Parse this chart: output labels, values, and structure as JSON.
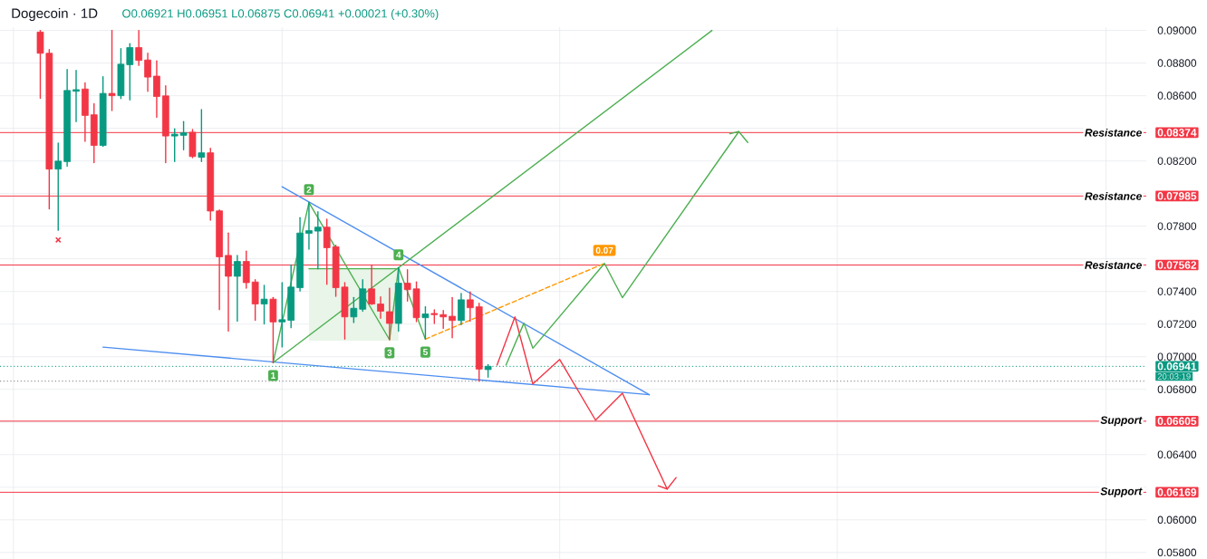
{
  "chart_data": {
    "type": "candlestick",
    "title": "Dogecoin · 1D",
    "subtitle": "O0.06921 H0.06951 L0.06875 C0.06941 +0.00021 (+0.30%)",
    "categories": [
      null,
      null,
      null,
      null,
      null,
      null,
      null,
      null,
      null,
      null,
      null,
      null,
      null,
      null,
      null,
      null,
      null,
      null,
      null,
      null,
      null,
      null,
      null,
      null,
      null,
      null,
      null,
      null,
      null,
      null,
      null,
      null,
      null,
      null,
      null,
      null,
      null,
      null,
      null,
      null,
      null,
      null,
      null,
      null,
      null,
      null,
      null,
      null,
      null,
      null,
      null,
      null,
      null,
      null,
      null,
      null,
      null,
      null,
      null,
      null,
      null,
      null,
      null,
      null,
      null,
      null,
      null,
      null,
      null,
      null,
      null,
      null,
      null,
      null,
      null,
      null,
      null,
      null,
      null,
      null,
      null,
      null,
      null,
      null,
      null,
      null,
      null,
      null,
      null,
      null,
      null,
      null,
      null,
      null,
      null,
      null,
      null,
      null,
      null,
      null,
      null,
      null,
      null,
      null,
      null,
      null,
      null,
      null,
      null,
      null,
      null,
      null,
      null,
      null,
      null,
      null,
      null,
      null,
      null,
      null,
      null,
      null,
      null,
      null,
      null,
      null,
      null,
      null
    ],
    "ohlc": [
      null,
      null,
      null,
      null,
      [
        0.0899,
        0.09,
        0.08584,
        0.0886
      ],
      [
        0.0886,
        0.08883,
        0.07906,
        0.0815
      ],
      [
        0.0815,
        0.0831,
        0.07775,
        0.08199
      ],
      [
        0.08196,
        0.0876,
        0.08168,
        0.08632
      ],
      [
        0.08627,
        0.08755,
        0.08441,
        0.08637
      ],
      [
        0.08641,
        0.08678,
        0.0832,
        0.08479
      ],
      [
        0.08483,
        0.08551,
        0.0819,
        0.08295
      ],
      [
        0.08295,
        0.08716,
        0.0829,
        0.08614
      ],
      [
        0.08614,
        0.09,
        0.08509,
        0.086
      ],
      [
        0.086,
        0.08888,
        0.08583,
        0.08793
      ],
      [
        0.0879,
        0.08919,
        0.08574,
        0.08895
      ],
      [
        0.08895,
        0.09,
        0.08786,
        0.08816
      ],
      [
        0.08819,
        0.0886,
        0.08627,
        0.08714
      ],
      [
        0.0872,
        0.08813,
        0.08467,
        0.08595
      ],
      [
        0.08599,
        0.0866,
        0.0819,
        0.08353
      ],
      [
        0.08353,
        0.08397,
        0.08196,
        0.08364
      ],
      [
        0.08357,
        0.08441,
        0.08269,
        0.08373
      ],
      [
        0.08376,
        0.08392,
        0.0822,
        0.08227
      ],
      [
        0.08222,
        0.08515,
        0.08196,
        0.0825
      ],
      [
        0.0825,
        0.08278,
        0.07837,
        0.07893
      ],
      [
        0.07894,
        0.079,
        0.07288,
        0.07612
      ],
      [
        0.07621,
        0.07758,
        0.07157,
        0.07493
      ],
      [
        0.07493,
        0.07621,
        0.07218,
        0.07584
      ],
      [
        0.07584,
        0.07647,
        0.0742,
        0.07454
      ],
      [
        0.07458,
        0.07472,
        0.07223,
        0.07323
      ],
      [
        0.07323,
        0.07437,
        0.07201,
        0.07353
      ],
      [
        0.07353,
        0.07363,
        0.06964,
        0.07213
      ],
      [
        0.07213,
        0.07454,
        0.0706,
        0.07227
      ],
      [
        0.07223,
        0.07563,
        0.07178,
        0.07427
      ],
      [
        0.07423,
        0.07852,
        0.07402,
        0.07758
      ],
      [
        0.07756,
        0.07945,
        0.07659,
        0.07773
      ],
      [
        0.0777,
        0.07889,
        0.07539,
        0.07794
      ],
      [
        0.07794,
        0.07843,
        0.07444,
        0.07668
      ],
      [
        0.07674,
        0.07683,
        0.0737,
        0.07423
      ],
      [
        0.07427,
        0.07454,
        0.07108,
        0.07244
      ],
      [
        0.07244,
        0.07363,
        0.07209,
        0.07297
      ],
      [
        0.07291,
        0.07472,
        0.07279,
        0.07416
      ],
      [
        0.07416,
        0.07563,
        0.0732,
        0.07323
      ],
      [
        0.07323,
        0.07367,
        0.07236,
        0.07279
      ],
      [
        0.07276,
        0.0742,
        0.07104,
        0.07204
      ],
      [
        0.07204,
        0.07546,
        0.07157,
        0.07451
      ],
      [
        0.07451,
        0.07533,
        0.07341,
        0.07411
      ],
      [
        0.07416,
        0.07458,
        0.07215,
        0.07239
      ],
      [
        0.07239,
        0.07306,
        0.07108,
        0.07262
      ],
      [
        0.07265,
        0.07288,
        0.07204,
        0.07258
      ],
      [
        0.07258,
        0.07283,
        0.07174,
        0.07244
      ],
      [
        0.07248,
        0.07363,
        0.07116,
        0.07222
      ],
      [
        0.07222,
        0.07388,
        0.07197,
        0.07349
      ],
      [
        0.07349,
        0.07397,
        0.07218,
        0.073
      ],
      [
        0.07306,
        0.07328,
        0.0685,
        0.06924
      ],
      [
        0.06921,
        0.06951,
        0.06875,
        0.06941
      ],
      null,
      null,
      null,
      null,
      null,
      null,
      null,
      null,
      null,
      null,
      null,
      null,
      null,
      null,
      null,
      null,
      null,
      null,
      null,
      null,
      null,
      null,
      null,
      null,
      null,
      null,
      null,
      null,
      null,
      null,
      null,
      null,
      null,
      null,
      null,
      null,
      null,
      null,
      null,
      null,
      null,
      null,
      null,
      null,
      null,
      null,
      null,
      null,
      null,
      null,
      null,
      null,
      null,
      null,
      null,
      null,
      null,
      null,
      null,
      null,
      null,
      null,
      null,
      null,
      null,
      null,
      null,
      null,
      null,
      null,
      null,
      null,
      null
    ],
    "colors": [
      null,
      null,
      null,
      null,
      "#f23645",
      "#f23645",
      "#089981",
      "#089981",
      "#089981",
      "#f23645",
      "#f23645",
      "#089981",
      "#f23645",
      "#089981",
      "#089981",
      "#f23645",
      "#f23645",
      "#f23645",
      "#f23645",
      "#089981",
      "#089981",
      "#f23645",
      "#089981",
      "#f23645",
      "#f23645",
      "#f23645",
      "#089981",
      "#f23645",
      "#f23645",
      "#089981",
      "#f23645",
      "#089981",
      "#089981",
      "#089981",
      "#089981",
      "#089981",
      "#f23645",
      "#f23645",
      "#f23645",
      "#089981",
      "#089981",
      "#f23645",
      "#f23645",
      "#f23645",
      "#089981",
      "#f23645",
      "#f23645",
      "#089981",
      "#f23645",
      "#f23645",
      "#f23645",
      "#089981",
      "#f23645",
      "#f23645",
      "#089981",
      null,
      null,
      null,
      null,
      null,
      null,
      null,
      null,
      null,
      null,
      null,
      null,
      null,
      null,
      null,
      null,
      null,
      null,
      null,
      null,
      null,
      null,
      null,
      null,
      null,
      null,
      null,
      null,
      null,
      null,
      null,
      null,
      null,
      null,
      null,
      null,
      null,
      null,
      null,
      null,
      null,
      null,
      null,
      null,
      null,
      null,
      null,
      null,
      null,
      null,
      null,
      null,
      null,
      null,
      null,
      null,
      null,
      null,
      null,
      null,
      null,
      null,
      null,
      null,
      null,
      null,
      null,
      null,
      null,
      null,
      null,
      null,
      null
    ],
    "ylim": [
      0.0576,
      0.0902
    ],
    "yticks": [
      {
        "value": 0.058,
        "label": "0.05800"
      },
      {
        "value": 0.06,
        "label": "0.06000"
      },
      {
        "value": 0.06169,
        "label": "0.06169"
      },
      {
        "value": 0.062,
        "label": null
      },
      {
        "value": 0.064,
        "label": "0.06400"
      },
      {
        "value": 0.06605,
        "label": "0.06605"
      },
      {
        "value": 0.066,
        "label": null
      },
      {
        "value": 0.068,
        "label": "0.06800"
      },
      {
        "value": 0.06941,
        "label": "0.06941"
      },
      {
        "value": 0.07,
        "label": "0.07000"
      },
      {
        "value": 0.072,
        "label": "0.07200"
      },
      {
        "value": 0.074,
        "label": "0.07400"
      },
      {
        "value": 0.07562,
        "label": "0.07562"
      },
      {
        "value": 0.076,
        "label": null
      },
      {
        "value": 0.078,
        "label": "0.07800"
      },
      {
        "value": 0.07985,
        "label": "0.07985"
      },
      {
        "value": 0.08,
        "label": null
      },
      {
        "value": 0.082,
        "label": "0.08200"
      },
      {
        "value": 0.08374,
        "label": "0.08374"
      },
      {
        "value": 0.084,
        "label": null
      },
      {
        "value": 0.086,
        "label": "0.08600"
      },
      {
        "value": 0.088,
        "label": "0.08800"
      },
      {
        "value": 0.09,
        "label": "0.09000"
      }
    ],
    "grid": true,
    "tick_labels": "y",
    "ref_lines": [
      {
        "axis": "y",
        "value": 0.08374,
        "label": "Resistance",
        "color": "#f23645",
        "line_style": "solid"
      },
      {
        "axis": "y",
        "value": 0.07985,
        "label": "Resistance",
        "color": "#f23645",
        "line_style": "solid"
      },
      {
        "axis": "y",
        "value": 0.07562,
        "label": "Resistance",
        "color": "#f23645",
        "line_style": "solid"
      },
      {
        "axis": "y",
        "value": 0.06605,
        "label": "Support",
        "color": "#f23645",
        "line_style": "solid"
      },
      {
        "axis": "y",
        "value": 0.06169,
        "label": "Support",
        "color": "#f23645",
        "line_style": "solid"
      },
      {
        "axis": "y",
        "value": 0.06941,
        "color": "#089981",
        "line_style": "dotted"
      },
      {
        "axis": "y",
        "value": 0.0685,
        "color": "#787b86",
        "line_style": "dotted"
      }
    ],
    "series": [
      {
        "type": "line",
        "color": "#4caf50",
        "values": [
          null,
          null,
          null,
          null,
          null,
          null,
          null,
          null,
          null,
          null,
          null,
          null,
          null,
          null,
          null,
          null,
          null,
          null,
          null,
          null,
          null,
          null,
          null,
          null,
          null,
          null,
          null,
          null,
          null,
          null,
          null,
          null,
          null,
          null,
          0.07539,
          null,
          null,
          null,
          null,
          null,
          null,
          null,
          null,
          null,
          0.07539,
          null,
          null,
          null,
          null,
          null,
          null,
          null,
          null,
          null,
          null,
          null,
          null,
          null,
          null,
          null,
          null,
          null,
          null,
          null,
          null,
          null,
          null,
          null,
          null,
          null,
          null,
          null,
          null,
          null,
          null,
          null,
          null,
          null,
          null,
          null,
          null,
          null,
          null,
          null,
          null,
          null,
          null,
          null,
          null,
          null,
          null,
          null,
          null,
          null,
          null,
          null,
          null,
          null,
          null,
          null,
          null,
          null,
          null,
          null,
          null,
          null,
          null,
          null,
          null,
          null,
          null,
          null,
          null,
          null,
          null,
          null,
          null,
          null,
          null,
          null,
          null,
          null,
          null,
          null,
          null,
          null,
          null,
          null
        ],
        "lower": [
          null,
          null,
          null,
          null,
          null,
          null,
          null,
          null,
          null,
          null,
          null,
          null,
          null,
          null,
          null,
          null,
          null,
          null,
          null,
          null,
          null,
          null,
          null,
          null,
          null,
          null,
          null,
          null,
          null,
          null,
          null,
          null,
          null,
          null,
          0.07099,
          null,
          null,
          null,
          null,
          null,
          null,
          null,
          null,
          null,
          0.07099,
          null,
          null,
          null,
          null,
          null,
          null,
          null,
          null,
          null,
          null,
          null,
          null,
          null,
          null,
          null,
          null,
          null,
          null,
          null,
          null,
          null,
          null,
          null,
          null,
          null,
          null,
          null,
          null,
          null,
          null,
          null,
          null,
          null,
          null,
          null,
          null,
          null,
          null,
          null,
          null,
          null,
          null,
          null,
          null,
          null,
          null,
          null,
          null,
          null,
          null,
          null,
          null,
          null,
          null,
          null,
          null,
          null,
          null,
          null,
          null,
          null,
          null,
          null,
          null,
          null,
          null,
          null,
          null,
          null,
          null,
          null,
          null,
          null,
          null,
          null,
          null,
          null,
          null,
          null,
          null,
          null,
          null,
          null
        ],
        "upper": [
          null,
          null,
          null,
          null,
          null,
          null,
          null,
          null,
          null,
          null,
          null,
          null,
          null,
          null,
          null,
          null,
          null,
          null,
          null,
          null,
          null,
          null,
          null,
          null,
          null,
          null,
          null,
          null,
          null,
          null,
          null,
          null,
          null,
          null,
          0.07539,
          null,
          null,
          null,
          null,
          null,
          null,
          null,
          null,
          null,
          0.07539,
          null,
          null,
          null,
          null,
          null,
          null,
          null,
          null,
          null,
          null,
          null,
          null,
          null,
          null,
          null,
          null,
          null,
          null,
          null,
          null,
          null,
          null,
          null,
          null,
          null,
          null,
          null,
          null,
          null,
          null,
          null,
          null,
          null,
          null,
          null,
          null,
          null,
          null,
          null,
          null,
          null,
          null,
          null,
          null,
          null,
          null,
          null,
          null,
          null,
          null,
          null,
          null,
          null,
          null,
          null,
          null,
          null,
          null,
          null,
          null,
          null,
          null,
          null,
          null,
          null,
          null,
          null,
          null,
          null,
          null,
          null,
          null,
          null,
          null,
          null,
          null,
          null,
          null,
          null,
          null,
          null,
          null,
          null
        ]
      },
      {
        "type": "line",
        "color": "#4d8ef0",
        "values": [
          null,
          null,
          null,
          null,
          null,
          null,
          null,
          null,
          null,
          null,
          null,
          null,
          null,
          null,
          null,
          null,
          null,
          null,
          null,
          null,
          null,
          null,
          null,
          null,
          null,
          null,
          null,
          null,
          null,
          null,
          null,
          0.08042,
          null,
          null,
          null,
          null,
          null,
          null,
          null,
          null,
          null,
          null,
          null,
          null,
          null,
          null,
          null,
          null,
          null,
          null,
          null,
          null,
          null,
          null,
          null,
          null,
          null,
          null,
          null,
          null,
          null,
          null,
          null,
          null,
          null,
          null,
          null,
          null,
          null,
          null,
          null,
          null,
          0.06767,
          null,
          null,
          null,
          null,
          null,
          null,
          null,
          null,
          null,
          null,
          null,
          null,
          null,
          null,
          null,
          null,
          null,
          null,
          null,
          null,
          null,
          null,
          null,
          null,
          null,
          null,
          null,
          null,
          null,
          null,
          null,
          null,
          null,
          null,
          null,
          null,
          null,
          null,
          null,
          null,
          null,
          null,
          null,
          null,
          null,
          null,
          null,
          null,
          null,
          null,
          null,
          null,
          null,
          null,
          null
        ]
      },
      {
        "type": "line",
        "color": "#4d8ef0",
        "values": [
          null,
          null,
          null,
          null,
          null,
          null,
          null,
          null,
          null,
          null,
          null,
          0.07059,
          null,
          null,
          null,
          null,
          null,
          null,
          null,
          null,
          null,
          null,
          null,
          null,
          null,
          null,
          null,
          null,
          null,
          null,
          null,
          null,
          null,
          null,
          null,
          null,
          null,
          null,
          null,
          null,
          null,
          null,
          null,
          null,
          null,
          null,
          null,
          null,
          null,
          null,
          null,
          null,
          null,
          null,
          null,
          null,
          null,
          null,
          null,
          null,
          null,
          null,
          null,
          null,
          null,
          null,
          null,
          null,
          null,
          null,
          null,
          null,
          0.06767,
          null,
          null,
          null,
          null,
          null,
          null,
          null,
          null,
          null,
          null,
          null,
          null,
          null,
          null,
          null,
          null,
          null,
          null,
          null,
          null,
          null,
          null,
          null,
          null,
          null,
          null,
          null,
          null,
          null,
          null,
          null,
          null,
          null,
          null,
          null,
          null,
          null,
          null,
          null,
          null,
          null,
          null,
          null,
          null,
          null,
          null,
          null,
          null,
          null,
          null,
          null,
          null,
          null,
          null,
          null
        ]
      },
      {
        "type": "line",
        "color": "#4caf50",
        "values": [
          null,
          null,
          null,
          null,
          null,
          null,
          null,
          null,
          null,
          null,
          null,
          null,
          null,
          null,
          null,
          null,
          null,
          null,
          null,
          null,
          null,
          null,
          null,
          null,
          null,
          null,
          null,
          null,
          null,
          null,
          0.06964,
          null,
          null,
          null,
          0.07945,
          null,
          null,
          null,
          null,
          null,
          null,
          null,
          null,
          0.07104,
          0.07546,
          null,
          null,
          0.07108,
          null,
          null,
          null,
          null,
          null,
          null,
          null,
          null,
          null,
          null,
          null,
          null,
          null,
          null,
          null,
          null,
          null,
          null,
          null,
          null,
          null,
          null,
          null,
          null,
          null,
          null,
          null,
          null,
          null,
          null,
          null,
          null,
          null,
          null,
          null,
          null,
          null,
          null,
          null,
          null,
          null,
          null,
          null,
          null,
          null,
          null,
          null,
          null,
          null,
          null,
          null,
          null,
          null,
          null,
          null,
          null,
          null,
          null,
          null,
          null,
          null,
          null,
          null,
          null,
          null,
          null,
          null,
          null,
          null,
          null,
          null,
          null,
          null,
          null,
          null,
          null,
          null,
          null,
          null,
          null
        ]
      },
      {
        "type": "line",
        "color": "#4caf50",
        "values": [
          null,
          null,
          null,
          null,
          null,
          null,
          null,
          null,
          null,
          null,
          null,
          null,
          null,
          null,
          null,
          null,
          null,
          null,
          null,
          null,
          null,
          null,
          null,
          null,
          null,
          null,
          null,
          null,
          null,
          null,
          0.06964,
          null,
          null,
          null,
          null,
          null,
          null,
          null,
          null,
          null,
          null,
          null,
          null,
          null,
          null,
          null,
          null,
          null,
          null,
          null,
          null,
          null,
          null,
          null,
          null,
          null,
          null,
          null,
          null,
          null,
          null,
          null,
          null,
          null,
          null,
          null,
          null,
          null,
          null,
          null,
          null,
          null,
          null,
          null,
          null,
          null,
          null,
          null,
          null,
          0.09,
          null,
          null,
          null,
          null,
          null,
          null,
          null,
          null,
          null,
          null,
          null,
          null,
          null,
          null,
          null,
          null,
          null,
          null,
          null,
          null,
          null,
          null,
          null,
          null,
          null,
          null,
          null,
          null,
          null,
          null,
          null,
          null,
          null,
          null,
          null,
          null,
          null,
          null,
          null,
          null,
          null,
          null,
          null,
          null,
          null,
          null,
          null,
          null
        ]
      },
      {
        "type": "line",
        "color": "#ff9800",
        "line_style": "dashed",
        "values": [
          null,
          null,
          null,
          null,
          null,
          null,
          null,
          null,
          null,
          null,
          null,
          null,
          null,
          null,
          null,
          null,
          null,
          null,
          null,
          null,
          null,
          null,
          null,
          null,
          null,
          null,
          null,
          null,
          null,
          null,
          null,
          null,
          null,
          null,
          null,
          null,
          null,
          null,
          null,
          null,
          null,
          null,
          null,
          null,
          null,
          null,
          null,
          0.07108,
          null,
          null,
          null,
          null,
          null,
          null,
          null,
          null,
          null,
          null,
          null,
          null,
          null,
          null,
          null,
          null,
          null,
          null,
          null,
          0.07572,
          null,
          null,
          null,
          null,
          null,
          null,
          null,
          null,
          null,
          null,
          null,
          null,
          null,
          null,
          null,
          null,
          null,
          null,
          null,
          null,
          null,
          null,
          null,
          null,
          null,
          null,
          null,
          null,
          null,
          null,
          null,
          null,
          null,
          null,
          null,
          null,
          null,
          null,
          null,
          null,
          null,
          null,
          null,
          null,
          null,
          null,
          null,
          null,
          null,
          null,
          null,
          null,
          null,
          null,
          null,
          null,
          null,
          null,
          null,
          null
        ]
      },
      {
        "type": "line",
        "color": "#f23645",
        "values": [
          null,
          null,
          null,
          null,
          null,
          null,
          null,
          null,
          null,
          null,
          null,
          null,
          null,
          null,
          null,
          null,
          null,
          null,
          null,
          null,
          null,
          null,
          null,
          null,
          null,
          null,
          null,
          null,
          null,
          null,
          null,
          null,
          null,
          null,
          null,
          null,
          null,
          null,
          null,
          null,
          null,
          null,
          null,
          null,
          null,
          null,
          null,
          null,
          null,
          null,
          null,
          null,
          null,
          null,
          null,
          0.06949,
          null,
          0.07244,
          null,
          0.06833,
          null,
          null,
          0.06983,
          null,
          null,
          null,
          0.06611,
          null,
          null,
          0.06776,
          null,
          null,
          null,
          null,
          0.06189,
          null,
          null,
          null,
          null,
          null,
          null,
          null,
          null,
          null,
          null,
          null,
          null,
          null,
          null,
          null,
          null,
          null,
          null,
          null,
          null,
          null,
          null,
          null,
          null,
          null,
          null,
          null,
          null,
          null,
          null,
          null,
          null,
          null,
          null,
          null,
          null,
          null,
          null,
          null,
          null,
          null,
          null,
          null,
          null,
          null,
          null,
          null,
          null,
          null,
          null,
          null,
          null,
          null
        ]
      },
      {
        "type": "line",
        "color": "#f23645",
        "values": [
          null,
          null,
          null,
          null,
          null,
          null,
          null,
          null,
          null,
          null,
          null,
          null,
          null,
          null,
          null,
          null,
          null,
          null,
          null,
          null,
          null,
          null,
          null,
          null,
          null,
          null,
          null,
          null,
          null,
          null,
          null,
          null,
          null,
          null,
          null,
          null,
          null,
          null,
          null,
          null,
          null,
          null,
          null,
          null,
          null,
          null,
          null,
          null,
          null,
          null,
          null,
          null,
          null,
          null,
          null,
          null,
          null,
          null,
          null,
          null,
          null,
          null,
          null,
          null,
          null,
          null,
          null,
          null,
          null,
          null,
          null,
          null,
          null,
          0.06209,
          0.06189,
          0.06259,
          null,
          null,
          null,
          null,
          null,
          null,
          null,
          null,
          null,
          null,
          null,
          null,
          null,
          null,
          null,
          null,
          null,
          null,
          null,
          null,
          null,
          null,
          null,
          null,
          null,
          null,
          null,
          null,
          null,
          null,
          null,
          null,
          null,
          null,
          null,
          null,
          null,
          null,
          null,
          null,
          null,
          null,
          null,
          null,
          null,
          null,
          null,
          null,
          null,
          null,
          null,
          null
        ]
      },
      {
        "type": "line",
        "color": "#4caf50",
        "values": [
          null,
          null,
          null,
          null,
          null,
          null,
          null,
          null,
          null,
          null,
          null,
          null,
          null,
          null,
          null,
          null,
          null,
          null,
          null,
          null,
          null,
          null,
          null,
          null,
          null,
          null,
          null,
          null,
          null,
          null,
          null,
          null,
          null,
          null,
          null,
          null,
          null,
          null,
          null,
          null,
          null,
          null,
          null,
          null,
          null,
          null,
          null,
          null,
          null,
          null,
          null,
          null,
          null,
          null,
          null,
          null,
          0.06949,
          null,
          0.07206,
          0.07052,
          null,
          null,
          null,
          null,
          null,
          null,
          null,
          0.07572,
          null,
          0.07362,
          null,
          null,
          null,
          null,
          null,
          null,
          null,
          null,
          null,
          null,
          null,
          null,
          0.0838,
          null,
          null,
          null,
          null,
          null,
          null,
          null,
          null,
          null,
          null,
          null,
          null,
          null,
          null,
          null,
          null,
          null,
          null,
          null,
          null,
          null,
          null,
          null,
          null,
          null,
          null,
          null,
          null,
          null,
          null,
          null,
          null,
          null,
          null,
          null,
          null,
          null,
          null,
          null,
          null,
          null,
          null,
          null,
          null,
          null
        ]
      },
      {
        "type": "line",
        "color": "#4caf50",
        "values": [
          null,
          null,
          null,
          null,
          null,
          null,
          null,
          null,
          null,
          null,
          null,
          null,
          null,
          null,
          null,
          null,
          null,
          null,
          null,
          null,
          null,
          null,
          null,
          null,
          null,
          null,
          null,
          null,
          null,
          null,
          null,
          null,
          null,
          null,
          null,
          null,
          null,
          null,
          null,
          null,
          null,
          null,
          null,
          null,
          null,
          null,
          null,
          null,
          null,
          null,
          null,
          null,
          null,
          null,
          null,
          null,
          null,
          null,
          null,
          null,
          null,
          null,
          null,
          null,
          null,
          null,
          null,
          null,
          null,
          null,
          null,
          null,
          null,
          null,
          null,
          null,
          null,
          null,
          null,
          null,
          null,
          0.08367,
          0.0838,
          0.08313,
          null,
          null,
          null,
          null,
          null,
          null,
          null,
          null,
          null,
          null,
          null,
          null,
          null,
          null,
          null,
          null,
          null,
          null,
          null,
          null,
          null,
          null,
          null,
          null,
          null,
          null,
          null,
          null,
          null,
          null,
          null,
          null,
          null,
          null,
          null,
          null,
          null,
          null,
          null,
          null,
          null,
          null,
          null,
          null
        ]
      },
      {
        "type": "scatter",
        "color": "#f23645",
        "marker": "cross",
        "values": [
          null,
          null,
          null,
          null,
          null,
          null,
          0.07716,
          null,
          null,
          null,
          null,
          null,
          null,
          null,
          null,
          null,
          null,
          null,
          null,
          null,
          null,
          null,
          null,
          null,
          null,
          null,
          null,
          null,
          null,
          null,
          null,
          null,
          null,
          null,
          null,
          null,
          null,
          null,
          null,
          null,
          null,
          null,
          null,
          null,
          null,
          null,
          null,
          null,
          null,
          null,
          null,
          null,
          null,
          null,
          null,
          null,
          null,
          null,
          null,
          null,
          null,
          null,
          null,
          null,
          null,
          null,
          null,
          null,
          null,
          null,
          null,
          null,
          null,
          null,
          null,
          null,
          null,
          null,
          null,
          null,
          null,
          null,
          null,
          null,
          null,
          null,
          null,
          null,
          null,
          null,
          null,
          null,
          null,
          null,
          null,
          null,
          null,
          null,
          null,
          null,
          null,
          null,
          null,
          null,
          null,
          null,
          null,
          null,
          null,
          null,
          null,
          null,
          null,
          null,
          null,
          null,
          null,
          null,
          null,
          null,
          null,
          null,
          null,
          null,
          null,
          null,
          null,
          null
        ]
      }
    ],
    "annotations": [
      {
        "text": "1",
        "y": 0.06964
      },
      {
        "text": "2",
        "y": 0.07945
      },
      {
        "text": "3",
        "y": 0.07104
      },
      {
        "text": "4",
        "y": 0.07546
      },
      {
        "text": "5",
        "y": 0.07108
      },
      {
        "text": "0.07",
        "y": 0.07572
      },
      "20:03:19"
    ]
  }
}
